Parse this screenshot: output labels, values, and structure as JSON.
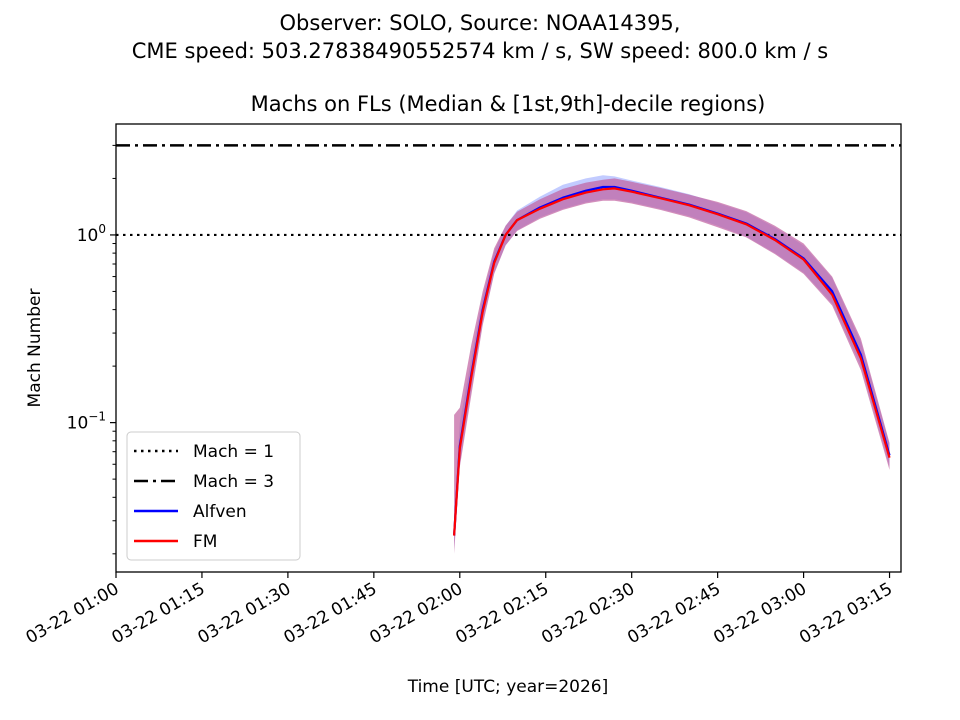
{
  "figure": {
    "suptitle_line1": "Observer: SOLO, Source: NOAA14395,",
    "suptitle_line2": "CME speed: 503.27838490552574 km / s, SW speed: 800.0 km / s"
  },
  "chart_data": {
    "type": "line",
    "title": "Machs on FLs (Median & [1st,9th]-decile regions)",
    "xlabel": "Time [UTC; year=2026]",
    "ylabel": "Mach Number",
    "y_scale": "log",
    "xlim": [
      "03-22 01:00",
      "03-22 03:17"
    ],
    "ylim": [
      0.016,
      3.9
    ],
    "x_ticks": [
      "03-22 01:00",
      "03-22 01:15",
      "03-22 01:30",
      "03-22 01:45",
      "03-22 02:00",
      "03-22 02:15",
      "03-22 02:30",
      "03-22 02:45",
      "03-22 03:00",
      "03-22 03:15"
    ],
    "y_tick_labels": [
      {
        "value": 1,
        "base": "10",
        "exp": "0"
      },
      {
        "value": 0.1,
        "base": "10",
        "exp": "−1"
      }
    ],
    "grid": false,
    "legend_position": "lower-left",
    "reference_lines": [
      {
        "name": "Mach = 1",
        "value": 1,
        "style": "dotted",
        "color": "#000000"
      },
      {
        "name": "Mach = 3",
        "value": 3,
        "style": "dashdot",
        "color": "#000000"
      }
    ],
    "series": [
      {
        "name": "Alfven",
        "color": "#0000ff",
        "band_color": "#9aa8ff",
        "x": [
          "03-22 01:59",
          "03-22 02:00",
          "03-22 02:02",
          "03-22 02:04",
          "03-22 02:06",
          "03-22 02:08",
          "03-22 02:10",
          "03-22 02:14",
          "03-22 02:18",
          "03-22 02:22",
          "03-22 02:25",
          "03-22 02:27",
          "03-22 02:30",
          "03-22 02:35",
          "03-22 02:40",
          "03-22 02:45",
          "03-22 02:50",
          "03-22 02:55",
          "03-22 03:00",
          "03-22 03:05",
          "03-22 03:10",
          "03-22 03:15"
        ],
        "median": [
          0.025,
          0.075,
          0.18,
          0.4,
          0.72,
          1.0,
          1.2,
          1.4,
          1.58,
          1.72,
          1.8,
          1.8,
          1.72,
          1.58,
          1.45,
          1.3,
          1.15,
          0.95,
          0.75,
          0.5,
          0.23,
          0.067
        ],
        "decile_1": [
          0.021,
          0.06,
          0.15,
          0.34,
          0.63,
          0.88,
          1.06,
          1.24,
          1.38,
          1.49,
          1.55,
          1.55,
          1.49,
          1.38,
          1.26,
          1.12,
          0.98,
          0.8,
          0.63,
          0.43,
          0.2,
          0.058
        ],
        "decile_9": [
          0.032,
          0.1,
          0.22,
          0.47,
          0.82,
          1.12,
          1.35,
          1.6,
          1.85,
          2.0,
          2.08,
          2.05,
          1.95,
          1.8,
          1.65,
          1.48,
          1.32,
          1.1,
          0.88,
          0.59,
          0.27,
          0.077
        ]
      },
      {
        "name": "FM",
        "color": "#ff0000",
        "band_color": "#c060a0",
        "x": [
          "03-22 01:59",
          "03-22 02:00",
          "03-22 02:02",
          "03-22 02:04",
          "03-22 02:06",
          "03-22 02:08",
          "03-22 02:10",
          "03-22 02:14",
          "03-22 02:18",
          "03-22 02:22",
          "03-22 02:25",
          "03-22 02:27",
          "03-22 02:30",
          "03-22 02:35",
          "03-22 02:40",
          "03-22 02:45",
          "03-22 02:50",
          "03-22 02:55",
          "03-22 03:00",
          "03-22 03:05",
          "03-22 03:10",
          "03-22 03:15"
        ],
        "median": [
          0.025,
          0.073,
          0.175,
          0.39,
          0.71,
          1.0,
          1.2,
          1.38,
          1.55,
          1.68,
          1.75,
          1.77,
          1.7,
          1.57,
          1.44,
          1.29,
          1.14,
          0.94,
          0.74,
          0.48,
          0.22,
          0.065
        ],
        "decile_1": [
          0.02,
          0.058,
          0.14,
          0.33,
          0.62,
          0.88,
          1.05,
          1.22,
          1.36,
          1.47,
          1.52,
          1.52,
          1.47,
          1.36,
          1.24,
          1.1,
          0.97,
          0.79,
          0.62,
          0.42,
          0.19,
          0.056
        ],
        "decile_9": [
          0.11,
          0.12,
          0.26,
          0.5,
          0.85,
          1.12,
          1.33,
          1.55,
          1.76,
          1.9,
          1.97,
          2.0,
          1.92,
          1.78,
          1.64,
          1.5,
          1.34,
          1.12,
          0.9,
          0.6,
          0.28,
          0.078
        ]
      }
    ]
  }
}
